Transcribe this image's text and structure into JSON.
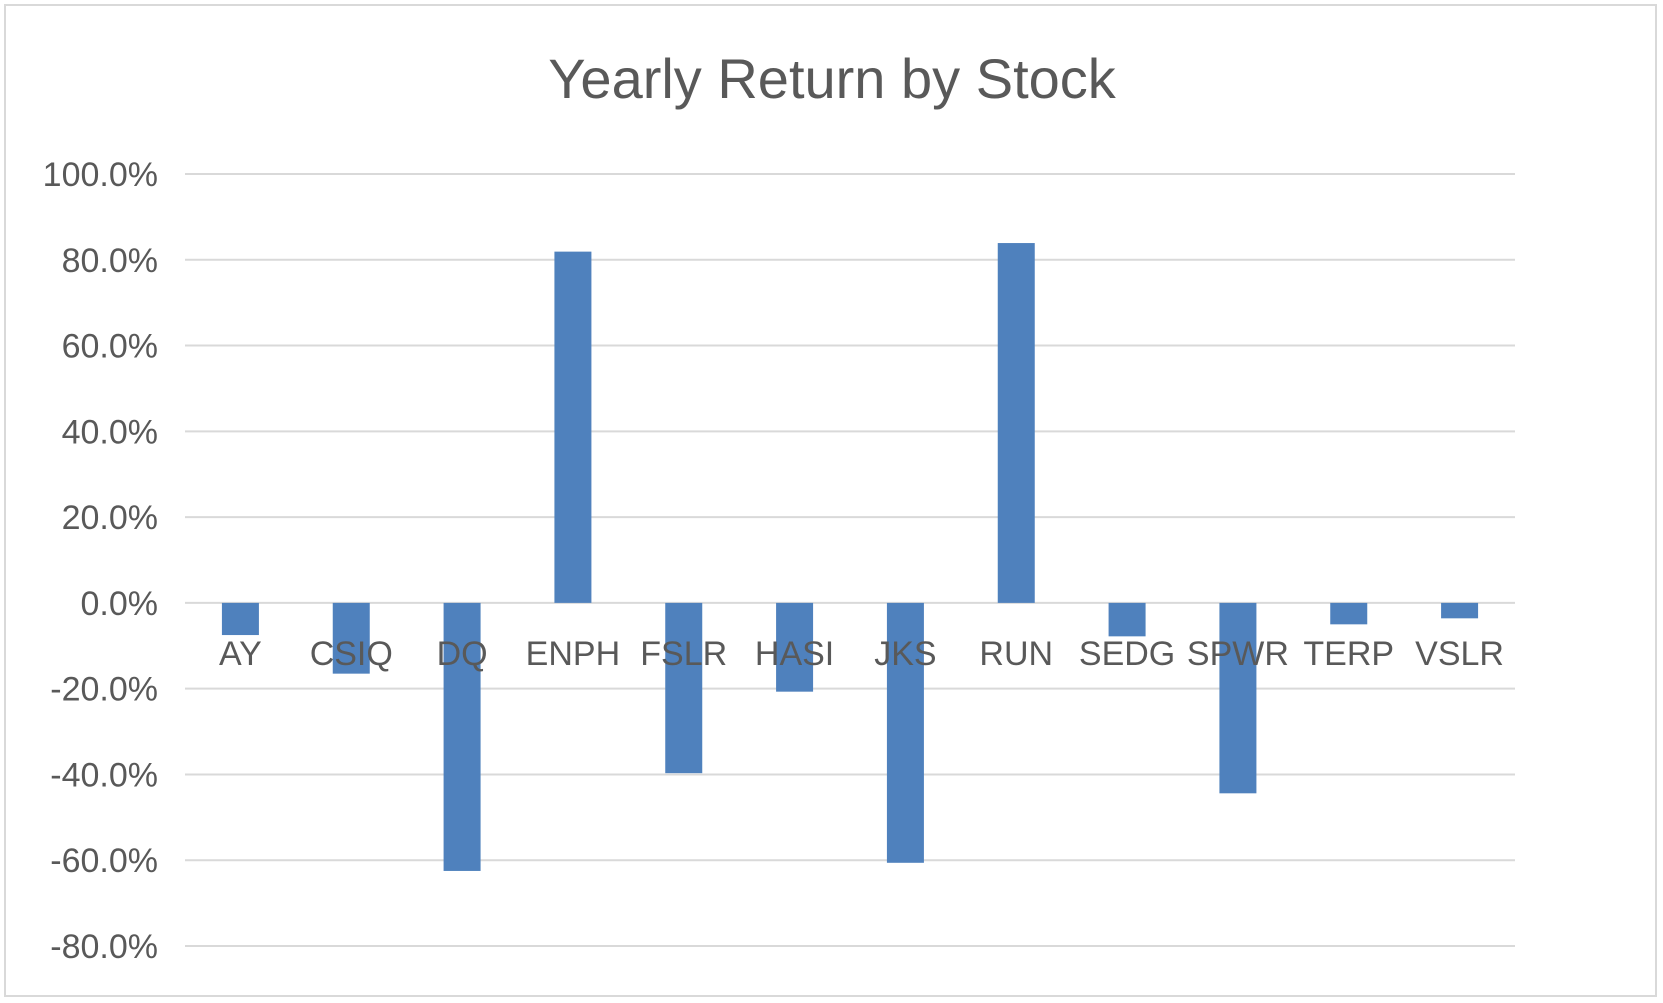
{
  "chart_data": {
    "type": "bar",
    "title": "Yearly Return by Stock",
    "xlabel": "",
    "ylabel": "",
    "categories": [
      "AY",
      "CSIQ",
      "DQ",
      "ENPH",
      "FSLR",
      "HASI",
      "JKS",
      "RUN",
      "SEDG",
      "SPWR",
      "TERP",
      "VSLR"
    ],
    "series": [
      {
        "values": [
          -7.5,
          -16.5,
          -62.5,
          81.9,
          -39.7,
          -20.7,
          -60.6,
          83.9,
          -7.8,
          -44.4,
          -5.0,
          -3.6
        ],
        "color": "#4f81bd"
      }
    ],
    "ylim": [
      -80,
      100
    ],
    "yticks": [
      100,
      80,
      60,
      40,
      20,
      0,
      -20,
      -40,
      -60,
      -80
    ],
    "ytick_labels": [
      "100.0%",
      "80.0%",
      "60.0%",
      "40.0%",
      "20.0%",
      "0.0%",
      "-20.0%",
      "-40.0%",
      "-60.0%",
      "-80.0%"
    ],
    "grid": true,
    "legend": "none",
    "colors": {
      "gridline": "#d9d9d9",
      "text": "#595959",
      "bar": "#4f81bd"
    }
  }
}
